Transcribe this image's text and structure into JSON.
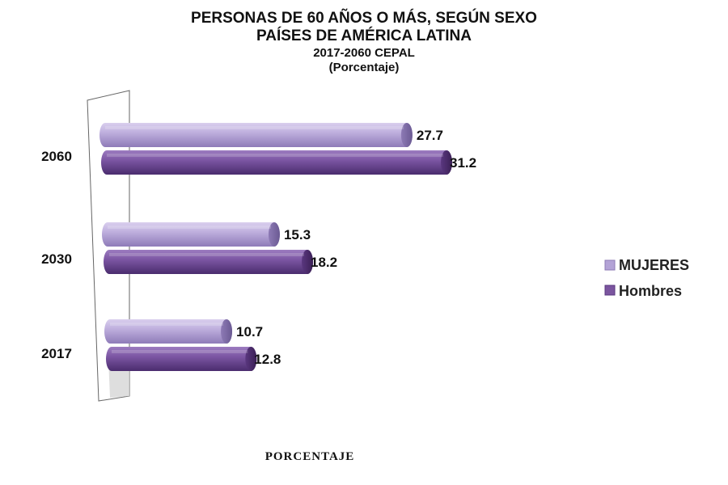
{
  "chart_data": {
    "type": "bar",
    "orientation": "horizontal",
    "title_lines": [
      "PERSONAS DE 60 AÑOS O MÁS, SEGÚN SEXO",
      "PAÍSES DE AMÉRICA LATINA",
      "2017-2060 CEPAL",
      "(Porcentaje)"
    ],
    "categories": [
      "2060",
      "2030",
      "2017"
    ],
    "series": [
      {
        "name": "MUJERES",
        "values": [
          27.7,
          15.3,
          10.7
        ],
        "color": "#b3a3d6"
      },
      {
        "name": "Hombres",
        "values": [
          31.2,
          18.2,
          12.8
        ],
        "color": "#7b559f"
      }
    ],
    "data_labels": [
      [
        "27.7",
        "15.3",
        "10.7"
      ],
      [
        "31.2",
        "18.2",
        "12.8"
      ]
    ],
    "xlabel": "PORCENTAJE",
    "xlim": [
      0,
      31.2
    ],
    "legend_position": "right",
    "grid": false
  }
}
